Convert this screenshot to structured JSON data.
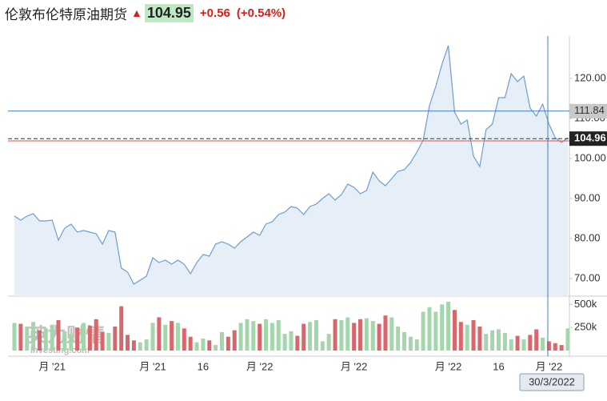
{
  "header": {
    "title": "伦敦布伦特原油期货",
    "price": "104.95",
    "change": "+0.56",
    "change_pct": "(+0.54%)"
  },
  "watermark": {
    "main": "英为财情",
    "sub": "Investing.com"
  },
  "chart_data": {
    "type": "line",
    "categories": [
      null,
      null,
      null,
      null,
      null,
      null,
      "月 '21",
      null,
      null,
      null,
      null,
      null,
      null,
      null,
      null,
      null,
      null,
      null,
      null,
      null,
      null,
      null,
      "月 '21",
      null,
      null,
      null,
      null,
      null,
      null,
      null,
      "16",
      null,
      null,
      null,
      null,
      null,
      null,
      null,
      null,
      "月 '22",
      null,
      null,
      null,
      null,
      null,
      null,
      null,
      null,
      null,
      null,
      null,
      null,
      null,
      null,
      "月 '22",
      null,
      null,
      null,
      null,
      null,
      null,
      null,
      null,
      null,
      null,
      null,
      null,
      null,
      null,
      "月 '22",
      null,
      null,
      null,
      null,
      null,
      null,
      null,
      "16",
      null,
      null,
      null,
      null,
      null,
      null,
      null,
      "月 '22",
      null,
      null,
      null
    ],
    "values": [
      85.6,
      84.6,
      85.6,
      86.2,
      84.4,
      84.4,
      84.6,
      79.6,
      82.6,
      83.6,
      81.6,
      82.0,
      81.6,
      81.2,
      78.6,
      82.0,
      81.6,
      72.6,
      71.6,
      68.6,
      69.6,
      70.6,
      75.2,
      74.0,
      74.6,
      73.6,
      74.6,
      73.6,
      71.2,
      74.0,
      76.0,
      75.6,
      78.6,
      79.2,
      78.6,
      77.6,
      79.2,
      80.4,
      81.6,
      80.8,
      83.6,
      84.2,
      86.0,
      86.6,
      88.0,
      87.6,
      86.0,
      88.0,
      88.6,
      90.0,
      91.2,
      89.6,
      91.0,
      93.6,
      92.8,
      91.2,
      92.0,
      96.6,
      94.4,
      93.2,
      95.0,
      96.8,
      97.2,
      99.0,
      101.6,
      104.6,
      113.2,
      118.0,
      123.6,
      128.2,
      111.6,
      108.6,
      109.6,
      100.6,
      98.0,
      107.2,
      108.6,
      115.2,
      115.2,
      121.2,
      119.2,
      120.6,
      112.6,
      110.6,
      113.6,
      108.6,
      105.2,
      104.0,
      105.2
    ],
    "color": "#6b9dd1",
    "fill": "#e6eef7",
    "ylim": [
      65.6,
      130.6
    ],
    "yticks": [
      {
        "value": 70,
        "label": "70.00"
      },
      {
        "value": 80,
        "label": "80.00"
      },
      {
        "value": 90,
        "label": "90.00"
      },
      {
        "value": 100,
        "label": "100.00"
      },
      {
        "value": 110,
        "label": "110.00"
      },
      {
        "value": 120,
        "label": "120.00"
      }
    ],
    "crosshair": {
      "value": 111.84,
      "date": "30/3/2022"
    },
    "last_value": 104.96,
    "previous_close": 104.39,
    "volume": {
      "values": [
        300000,
        290000,
        260000,
        310000,
        220000,
        240000,
        280000,
        330000,
        210000,
        180000,
        250000,
        300000,
        270000,
        340000,
        200000,
        190000,
        260000,
        480000,
        170000,
        110000,
        90000,
        120000,
        300000,
        360000,
        280000,
        320000,
        300000,
        240000,
        150000,
        90000,
        130000,
        110000,
        60000,
        200000,
        150000,
        220000,
        300000,
        340000,
        320000,
        290000,
        340000,
        300000,
        330000,
        180000,
        210000,
        160000,
        290000,
        310000,
        330000,
        100000,
        180000,
        340000,
        330000,
        360000,
        300000,
        340000,
        350000,
        320000,
        290000,
        380000,
        360000,
        260000,
        200000,
        150000,
        120000,
        420000,
        470000,
        420000,
        500000,
        530000,
        440000,
        310000,
        280000,
        330000,
        260000,
        180000,
        220000,
        230000,
        190000,
        120000,
        160000,
        120000,
        170000,
        230000,
        140000,
        100000,
        80000,
        60000,
        240000
      ],
      "ylim": [
        0,
        607000
      ],
      "yticks": [
        {
          "value": 250000,
          "label": "250k"
        },
        {
          "value": 500000,
          "label": "500k"
        }
      ],
      "up_color": "#a3d6ab",
      "down_color": "#d9666b"
    }
  }
}
